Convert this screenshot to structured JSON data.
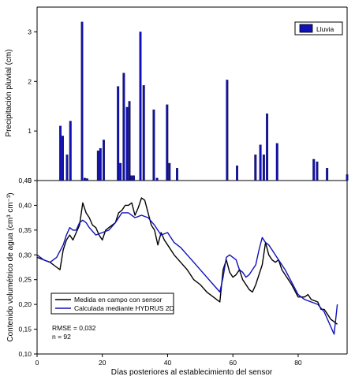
{
  "chart_data": [
    {
      "type": "bar",
      "ylabel": "Precipitación pluvial (cm)",
      "ylim": [
        0,
        3.5
      ],
      "xlim": [
        0,
        93
      ],
      "yticks": [
        0,
        1,
        2,
        3
      ],
      "ytick_labels": [
        "0",
        "1",
        "2",
        "3"
      ],
      "series": [
        {
          "name": "Lluvia",
          "color": "#1010b8",
          "x": [
            7,
            7.7,
            9,
            10,
            18.3,
            19,
            20,
            24.3,
            25,
            26,
            27,
            27.7,
            28.3,
            29,
            31,
            32,
            35,
            36,
            39,
            39.7,
            42,
            57,
            60,
            65.5,
            67,
            68,
            69,
            72,
            83,
            84,
            87,
            93
          ],
          "values": [
            1.1,
            0.9,
            0.52,
            1.2,
            0.6,
            0.65,
            0.82,
            1.9,
            0.35,
            2.17,
            1.48,
            1.6,
            0.1,
            0.1,
            3.0,
            1.92,
            1.43,
            0.05,
            1.53,
            0.35,
            0.25,
            2.03,
            0.3,
            0.52,
            0.72,
            0.52,
            1.35,
            0.75,
            0.43,
            0.38,
            0.25,
            0.12
          ]
        }
      ],
      "extra_bars": {
        "x": [
          13.5,
          14.3,
          15
        ],
        "values": [
          3.2,
          0.05,
          0.04
        ]
      },
      "legend": "top-right"
    },
    {
      "type": "line",
      "xlabel": "Días posteriores al establecimiento del sensor",
      "ylabel": "Contenido volumétrico de agua (cm³ cm⁻³)",
      "xlim": [
        0,
        95
      ],
      "ylim": [
        0.1,
        0.45
      ],
      "xticks": [
        0,
        20,
        40,
        60,
        80
      ],
      "xtick_labels": [
        "0",
        "20",
        "40",
        "60",
        "80"
      ],
      "yticks": [
        0.1,
        0.15,
        0.2,
        0.25,
        0.3,
        0.35,
        0.4,
        0.45
      ],
      "ytick_labels": [
        "0,10",
        "0,15",
        "0,20",
        "0,25",
        "0,30",
        "0,35",
        "0,40",
        "0,45"
      ],
      "series": [
        {
          "name": "Medida en campo con sensor",
          "color": "#000000",
          "points": [
            [
              0,
              0.295
            ],
            [
              2,
              0.29
            ],
            [
              4,
              0.285
            ],
            [
              6,
              0.275
            ],
            [
              7,
              0.27
            ],
            [
              8,
              0.31
            ],
            [
              9,
              0.33
            ],
            [
              10,
              0.34
            ],
            [
              11,
              0.33
            ],
            [
              12,
              0.345
            ],
            [
              13,
              0.36
            ],
            [
              14,
              0.405
            ],
            [
              15,
              0.385
            ],
            [
              16,
              0.375
            ],
            [
              17,
              0.36
            ],
            [
              18,
              0.355
            ],
            [
              19,
              0.34
            ],
            [
              20,
              0.33
            ],
            [
              21,
              0.35
            ],
            [
              22,
              0.355
            ],
            [
              23,
              0.36
            ],
            [
              24,
              0.365
            ],
            [
              25,
              0.385
            ],
            [
              26,
              0.39
            ],
            [
              27,
              0.4
            ],
            [
              28,
              0.4
            ],
            [
              29,
              0.405
            ],
            [
              30,
              0.38
            ],
            [
              31,
              0.395
            ],
            [
              32,
              0.415
            ],
            [
              33,
              0.41
            ],
            [
              34,
              0.385
            ],
            [
              35,
              0.36
            ],
            [
              36,
              0.35
            ],
            [
              37,
              0.32
            ],
            [
              38,
              0.345
            ],
            [
              39,
              0.33
            ],
            [
              40,
              0.32
            ],
            [
              42,
              0.3
            ],
            [
              44,
              0.285
            ],
            [
              46,
              0.27
            ],
            [
              48,
              0.25
            ],
            [
              50,
              0.24
            ],
            [
              52,
              0.225
            ],
            [
              54,
              0.215
            ],
            [
              56,
              0.205
            ],
            [
              57,
              0.27
            ],
            [
              58,
              0.29
            ],
            [
              59,
              0.265
            ],
            [
              60,
              0.255
            ],
            [
              61,
              0.26
            ],
            [
              62,
              0.27
            ],
            [
              63,
              0.25
            ],
            [
              64,
              0.24
            ],
            [
              65,
              0.23
            ],
            [
              66,
              0.225
            ],
            [
              67,
              0.24
            ],
            [
              68,
              0.26
            ],
            [
              69,
              0.28
            ],
            [
              70,
              0.325
            ],
            [
              71,
              0.3
            ],
            [
              72,
              0.29
            ],
            [
              73,
              0.285
            ],
            [
              74,
              0.29
            ],
            [
              75,
              0.27
            ],
            [
              76,
              0.26
            ],
            [
              78,
              0.24
            ],
            [
              80,
              0.215
            ],
            [
              82,
              0.215
            ],
            [
              83,
              0.22
            ],
            [
              84,
              0.21
            ],
            [
              86,
              0.205
            ],
            [
              87,
              0.19
            ],
            [
              88,
              0.19
            ],
            [
              89,
              0.18
            ],
            [
              90,
              0.17
            ],
            [
              91,
              0.165
            ],
            [
              92,
              0.16
            ]
          ]
        },
        {
          "name": "Calculada mediante HYDRUS 2D",
          "color": "#1010b8",
          "points": [
            [
              0,
              0.3
            ],
            [
              2,
              0.29
            ],
            [
              4,
              0.285
            ],
            [
              6,
              0.295
            ],
            [
              8,
              0.32
            ],
            [
              9,
              0.34
            ],
            [
              10,
              0.355
            ],
            [
              11,
              0.35
            ],
            [
              12,
              0.35
            ],
            [
              13,
              0.365
            ],
            [
              14,
              0.37
            ],
            [
              15,
              0.365
            ],
            [
              16,
              0.355
            ],
            [
              18,
              0.34
            ],
            [
              20,
              0.345
            ],
            [
              22,
              0.35
            ],
            [
              24,
              0.365
            ],
            [
              26,
              0.385
            ],
            [
              28,
              0.385
            ],
            [
              30,
              0.375
            ],
            [
              32,
              0.38
            ],
            [
              34,
              0.375
            ],
            [
              36,
              0.36
            ],
            [
              38,
              0.34
            ],
            [
              40,
              0.345
            ],
            [
              42,
              0.325
            ],
            [
              44,
              0.315
            ],
            [
              46,
              0.3
            ],
            [
              48,
              0.285
            ],
            [
              50,
              0.27
            ],
            [
              52,
              0.255
            ],
            [
              54,
              0.24
            ],
            [
              56,
              0.225
            ],
            [
              57,
              0.255
            ],
            [
              58,
              0.295
            ],
            [
              59,
              0.3
            ],
            [
              60,
              0.295
            ],
            [
              61,
              0.29
            ],
            [
              62,
              0.27
            ],
            [
              63,
              0.265
            ],
            [
              64,
              0.255
            ],
            [
              65,
              0.26
            ],
            [
              66,
              0.27
            ],
            [
              67,
              0.28
            ],
            [
              68,
              0.31
            ],
            [
              69,
              0.335
            ],
            [
              70,
              0.325
            ],
            [
              71,
              0.32
            ],
            [
              72,
              0.31
            ],
            [
              74,
              0.29
            ],
            [
              76,
              0.27
            ],
            [
              78,
              0.245
            ],
            [
              80,
              0.22
            ],
            [
              82,
              0.21
            ],
            [
              84,
              0.205
            ],
            [
              86,
              0.2
            ],
            [
              88,
              0.185
            ],
            [
              90,
              0.155
            ],
            [
              91,
              0.14
            ],
            [
              92,
              0.2
            ]
          ]
        }
      ],
      "annotations": [
        "RMSE = 0,032",
        "n = 92"
      ],
      "legend": "bottom-left"
    }
  ]
}
